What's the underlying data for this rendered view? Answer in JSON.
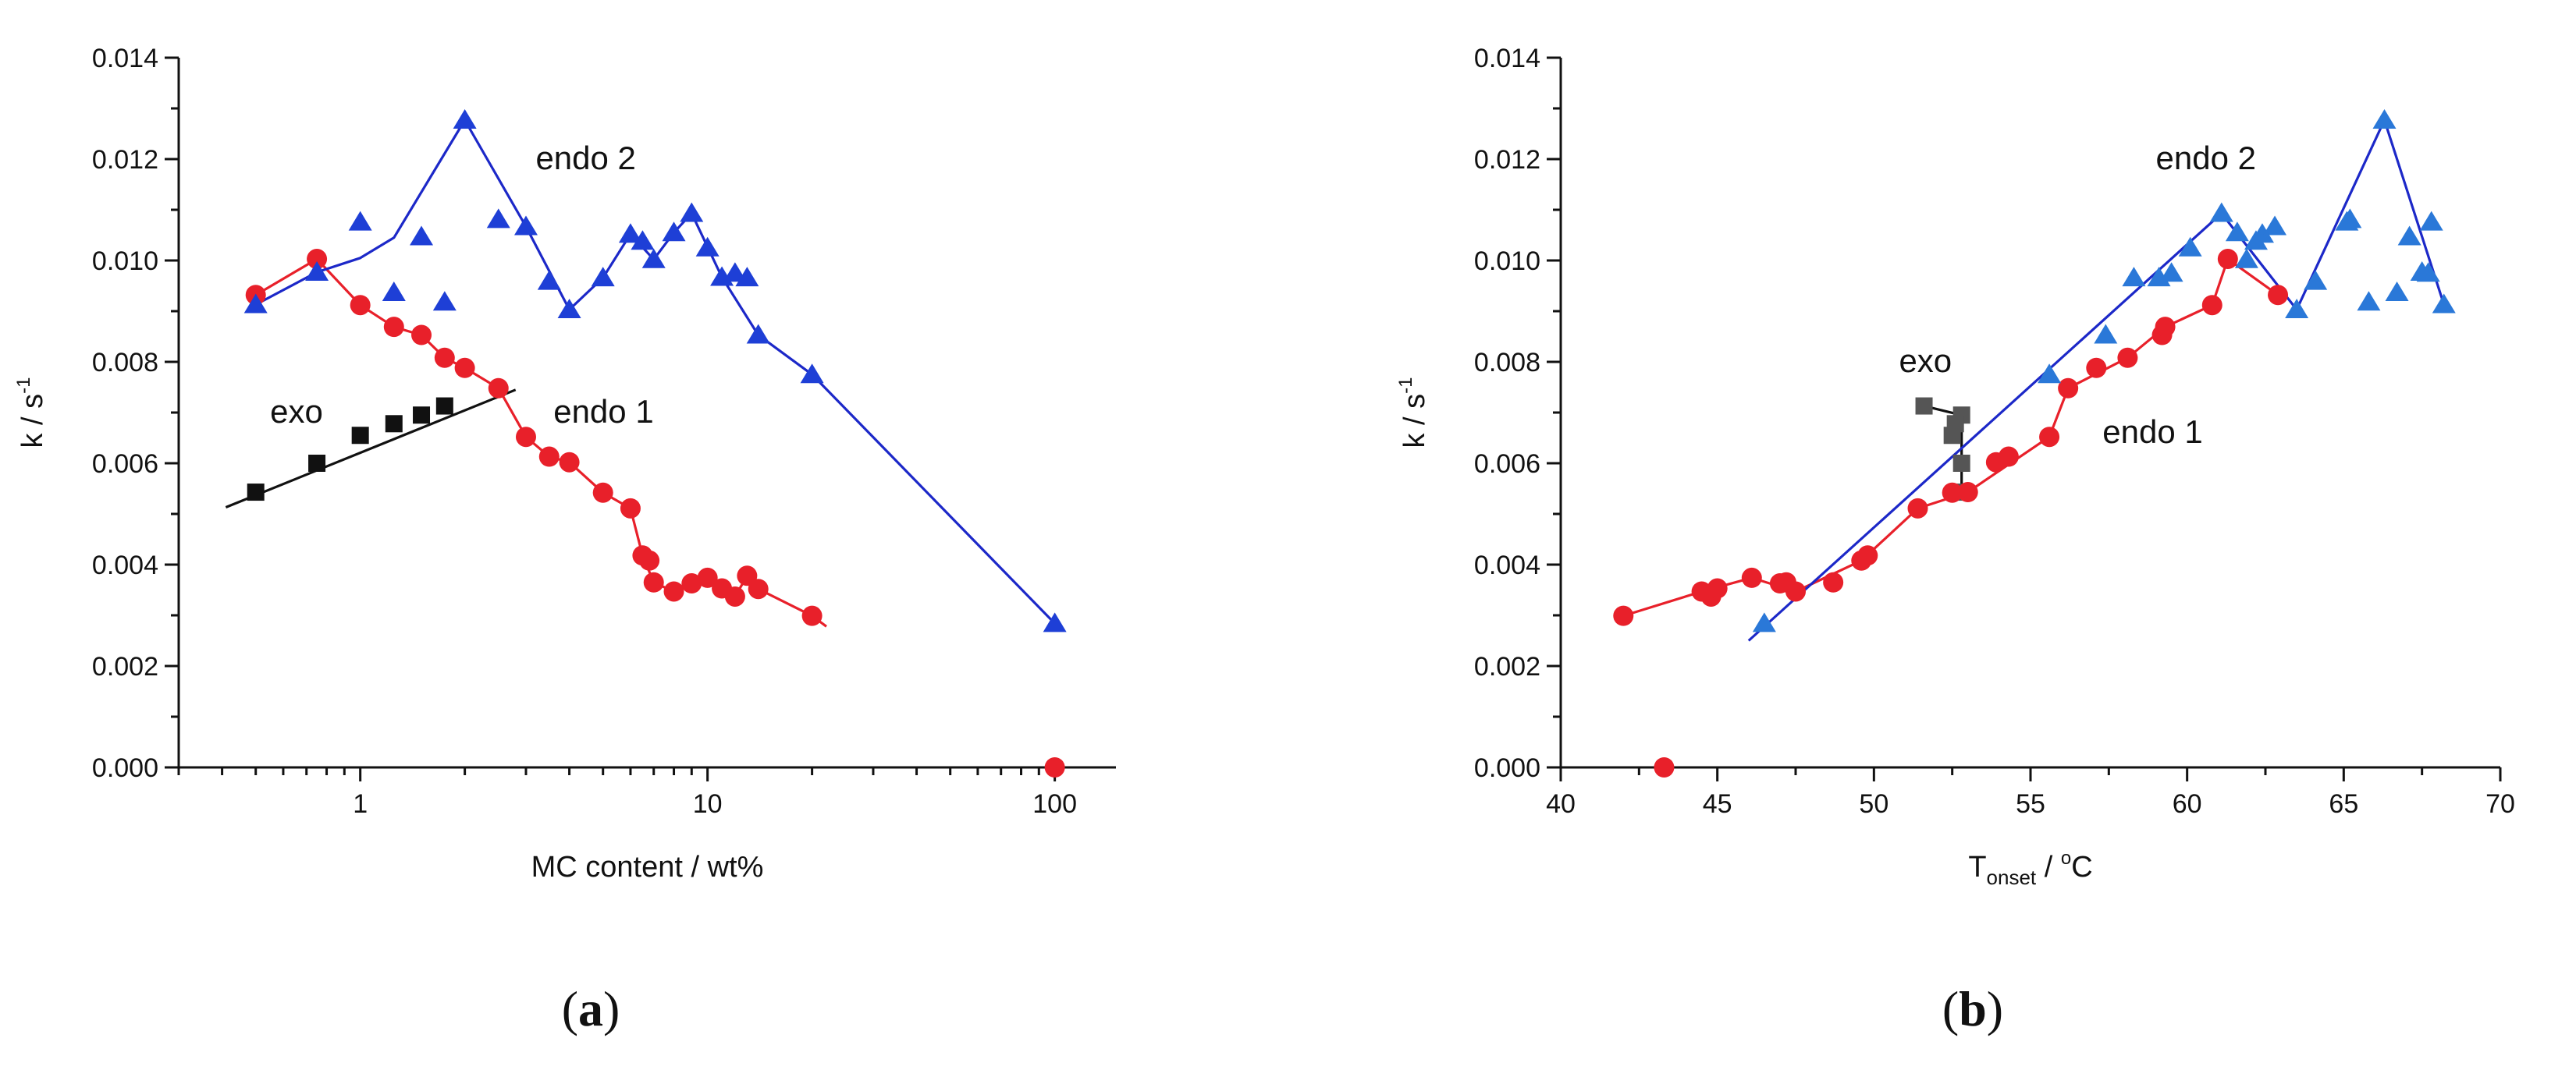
{
  "captions": {
    "a": "a",
    "b": "b",
    "open": "(",
    "close": ")"
  },
  "colors": {
    "exo": "#111111",
    "endo1": "#e8202a",
    "endo2_line": "#1c28c8",
    "endo2_marker": "#1e3fd6",
    "endo2_marker_b": "#2a78d8",
    "axis": "#111111"
  },
  "chart_data": [
    {
      "id": "a",
      "type": "scatter",
      "xscale": "log",
      "xlim": [
        0.3,
        150
      ],
      "ylim": [
        0,
        0.014
      ],
      "xlabel": "MC content / wt%",
      "ylabel_main": "k / s",
      "ylabel_sup": "-1",
      "xticks": [
        1,
        10,
        100
      ],
      "xtick_labels": [
        "1",
        "10",
        "100"
      ],
      "yticks": [
        0,
        0.002,
        0.004,
        0.006,
        0.008,
        0.01,
        0.012,
        0.014
      ],
      "ytick_labels": [
        "0.000",
        "0.002",
        "0.004",
        "0.006",
        "0.008",
        "0.010",
        "0.012",
        "0.014"
      ],
      "annotations": [
        {
          "text": "exo",
          "x": 0.55,
          "y": 0.0068
        },
        {
          "text": "endo 1",
          "x": 3.6,
          "y": 0.0068
        },
        {
          "text": "endo 2",
          "x": 3.2,
          "y": 0.0118
        }
      ],
      "series": [
        {
          "name": "exo",
          "color_key": "exo",
          "marker": "square",
          "points": [
            [
              0.5,
              0.00543
            ],
            [
              0.75,
              0.006
            ],
            [
              1.0,
              0.00655
            ],
            [
              1.25,
              0.00678
            ],
            [
              1.5,
              0.00695
            ],
            [
              1.75,
              0.00713
            ]
          ],
          "line": [
            [
              0.41,
              0.00513
            ],
            [
              2.8,
              0.00745
            ]
          ]
        },
        {
          "name": "endo 1",
          "color_key": "endo1",
          "marker": "circle",
          "points": [
            [
              0.5,
              0.00932
            ],
            [
              0.75,
              0.01003
            ],
            [
              1.0,
              0.00912
            ],
            [
              1.25,
              0.00869
            ],
            [
              1.5,
              0.00853
            ],
            [
              1.75,
              0.00808
            ],
            [
              2.0,
              0.00788
            ],
            [
              2.5,
              0.00748
            ],
            [
              3.0,
              0.00652
            ],
            [
              3.5,
              0.00613
            ],
            [
              4.0,
              0.00602
            ],
            [
              5.0,
              0.00542
            ],
            [
              6.0,
              0.00511
            ],
            [
              6.5,
              0.00418
            ],
            [
              6.8,
              0.00408
            ],
            [
              7.0,
              0.00365
            ],
            [
              8.0,
              0.00347
            ],
            [
              9.0,
              0.00363
            ],
            [
              10.0,
              0.00374
            ],
            [
              11.0,
              0.00353
            ],
            [
              12.0,
              0.00337
            ],
            [
              13.0,
              0.00378
            ],
            [
              14.0,
              0.00352
            ],
            [
              20.0,
              0.00299
            ],
            [
              100.0,
              0.0
            ]
          ],
          "line": [
            [
              0.5,
              0.00932
            ],
            [
              0.75,
              0.01003
            ],
            [
              1.0,
              0.00912
            ],
            [
              1.25,
              0.00869
            ],
            [
              1.5,
              0.00853
            ],
            [
              1.75,
              0.00808
            ],
            [
              2.0,
              0.00788
            ],
            [
              2.5,
              0.00748
            ],
            [
              3.0,
              0.00652
            ],
            [
              3.5,
              0.00613
            ],
            [
              4.0,
              0.00602
            ],
            [
              5.0,
              0.00542
            ],
            [
              6.0,
              0.00511
            ],
            [
              6.5,
              0.00418
            ],
            [
              7.0,
              0.00365
            ],
            [
              8.0,
              0.00347
            ],
            [
              9.0,
              0.00363
            ],
            [
              10.0,
              0.00374
            ],
            [
              12.0,
              0.00337
            ],
            [
              13.0,
              0.00378
            ],
            [
              14.0,
              0.00352
            ],
            [
              20.0,
              0.00299
            ],
            [
              22.0,
              0.00278
            ]
          ]
        },
        {
          "name": "endo 2",
          "color_key": "endo2_marker",
          "line_color_key": "endo2_line",
          "marker": "triangle",
          "points": [
            [
              0.5,
              0.00913
            ],
            [
              0.75,
              0.00977
            ],
            [
              1.0,
              0.01076
            ],
            [
              1.25,
              0.00937
            ],
            [
              1.5,
              0.01047
            ],
            [
              1.75,
              0.00918
            ],
            [
              2.0,
              0.01277
            ],
            [
              2.5,
              0.01081
            ],
            [
              3.0,
              0.01067
            ],
            [
              3.5,
              0.00959
            ],
            [
              4.0,
              0.00903
            ],
            [
              5.0,
              0.00966
            ],
            [
              6.0,
              0.01052
            ],
            [
              6.5,
              0.01038
            ],
            [
              7.0,
              0.01002
            ],
            [
              8.0,
              0.01055
            ],
            [
              9.0,
              0.01093
            ],
            [
              10.0,
              0.01025
            ],
            [
              11.0,
              0.00967
            ],
            [
              12.0,
              0.00975
            ],
            [
              13.0,
              0.00966
            ],
            [
              14.0,
              0.00853
            ],
            [
              20.0,
              0.00775
            ],
            [
              100.0,
              0.00284
            ]
          ],
          "line": [
            [
              0.5,
              0.00913
            ],
            [
              0.75,
              0.00977
            ],
            [
              1.0,
              0.01005
            ],
            [
              1.25,
              0.01045
            ],
            [
              2.0,
              0.01277
            ],
            [
              3.0,
              0.01067
            ],
            [
              4.0,
              0.00903
            ],
            [
              5.0,
              0.00966
            ],
            [
              6.0,
              0.01052
            ],
            [
              7.0,
              0.01002
            ],
            [
              8.0,
              0.01055
            ],
            [
              9.0,
              0.01093
            ],
            [
              11.0,
              0.00967
            ],
            [
              14.0,
              0.00853
            ],
            [
              20.0,
              0.00775
            ],
            [
              100.0,
              0.00284
            ]
          ]
        }
      ]
    },
    {
      "id": "b",
      "type": "scatter",
      "xscale": "linear",
      "xlim": [
        40,
        70
      ],
      "ylim": [
        0,
        0.014
      ],
      "xlabel_main": "T",
      "xlabel_sub": "onset",
      "xlabel_rest": " / ",
      "xlabel_unit_sup": "o",
      "xlabel_unit": "C",
      "ylabel_main": "k / s",
      "ylabel_sup": "-1",
      "xticks": [
        40,
        45,
        50,
        55,
        60,
        65,
        70
      ],
      "xtick_labels": [
        "40",
        "45",
        "50",
        "55",
        "60",
        "65",
        "70"
      ],
      "yticks": [
        0,
        0.002,
        0.004,
        0.006,
        0.008,
        0.01,
        0.012,
        0.014
      ],
      "ytick_labels": [
        "0.000",
        "0.002",
        "0.004",
        "0.006",
        "0.008",
        "0.010",
        "0.012",
        "0.014"
      ],
      "annotations": [
        {
          "text": "exo",
          "x": 50.8,
          "y": 0.0078
        },
        {
          "text": "endo 1",
          "x": 57.3,
          "y": 0.0064
        },
        {
          "text": "endo 2",
          "x": 59.0,
          "y": 0.0118
        }
      ],
      "series": [
        {
          "name": "exo",
          "color_key": "exo",
          "marker": "square",
          "marker_color": "#555555",
          "points": [
            [
              51.6,
              0.00713
            ],
            [
              52.8,
              0.00695
            ],
            [
              52.6,
              0.00678
            ],
            [
              52.5,
              0.00655
            ],
            [
              52.8,
              0.006
            ],
            [
              52.7,
              0.00543
            ]
          ],
          "line": [
            [
              51.6,
              0.00713
            ],
            [
              52.8,
              0.00695
            ],
            [
              52.8,
              0.00543
            ]
          ]
        },
        {
          "name": "endo 1",
          "color_key": "endo1",
          "marker": "circle",
          "points": [
            [
              42.0,
              0.00299
            ],
            [
              43.3,
              0.0
            ],
            [
              44.5,
              0.00347
            ],
            [
              44.8,
              0.00337
            ],
            [
              45.0,
              0.00353
            ],
            [
              46.1,
              0.00374
            ],
            [
              47.0,
              0.00363
            ],
            [
              47.2,
              0.00365
            ],
            [
              47.5,
              0.00347
            ],
            [
              48.7,
              0.00365
            ],
            [
              49.6,
              0.00408
            ],
            [
              49.8,
              0.00418
            ],
            [
              51.4,
              0.00511
            ],
            [
              52.5,
              0.00542
            ],
            [
              53.0,
              0.00543
            ],
            [
              53.9,
              0.00602
            ],
            [
              54.3,
              0.00613
            ],
            [
              55.6,
              0.00652
            ],
            [
              56.2,
              0.00748
            ],
            [
              57.1,
              0.00788
            ],
            [
              58.1,
              0.00808
            ],
            [
              59.2,
              0.00853
            ],
            [
              59.3,
              0.00869
            ],
            [
              60.8,
              0.00912
            ],
            [
              61.3,
              0.01003
            ],
            [
              62.9,
              0.00932
            ]
          ],
          "line": [
            [
              42.0,
              0.00299
            ],
            [
              44.5,
              0.00347
            ],
            [
              46.1,
              0.00374
            ],
            [
              47.5,
              0.00347
            ],
            [
              49.6,
              0.00408
            ],
            [
              51.4,
              0.00511
            ],
            [
              53.0,
              0.00543
            ],
            [
              55.6,
              0.00652
            ],
            [
              56.2,
              0.00748
            ],
            [
              58.1,
              0.00808
            ],
            [
              59.3,
              0.00869
            ],
            [
              60.8,
              0.00912
            ],
            [
              61.3,
              0.01003
            ],
            [
              62.9,
              0.00932
            ]
          ]
        },
        {
          "name": "endo 2",
          "color_key": "endo2_marker_b",
          "line_color_key": "endo2_line",
          "marker": "triangle",
          "points": [
            [
              46.5,
              0.00284
            ],
            [
              55.6,
              0.00775
            ],
            [
              57.4,
              0.00853
            ],
            [
              58.3,
              0.00966
            ],
            [
              59.1,
              0.00966
            ],
            [
              59.5,
              0.00975
            ],
            [
              60.1,
              0.01025
            ],
            [
              61.1,
              0.01093
            ],
            [
              61.6,
              0.01055
            ],
            [
              61.9,
              0.01002
            ],
            [
              62.2,
              0.01038
            ],
            [
              62.4,
              0.01052
            ],
            [
              62.8,
              0.01067
            ],
            [
              63.5,
              0.00903
            ],
            [
              64.1,
              0.00959
            ],
            [
              65.1,
              0.01076
            ],
            [
              65.2,
              0.01081
            ],
            [
              65.8,
              0.00918
            ],
            [
              66.3,
              0.01277
            ],
            [
              66.7,
              0.00937
            ],
            [
              67.1,
              0.01047
            ],
            [
              67.5,
              0.00977
            ],
            [
              67.7,
              0.00975
            ],
            [
              67.8,
              0.01076
            ],
            [
              68.2,
              0.00913
            ]
          ],
          "line": [
            [
              46.0,
              0.0025
            ],
            [
              61.1,
              0.01093
            ],
            [
              63.5,
              0.00903
            ],
            [
              66.3,
              0.01277
            ],
            [
              68.2,
              0.00913
            ]
          ]
        }
      ]
    }
  ]
}
